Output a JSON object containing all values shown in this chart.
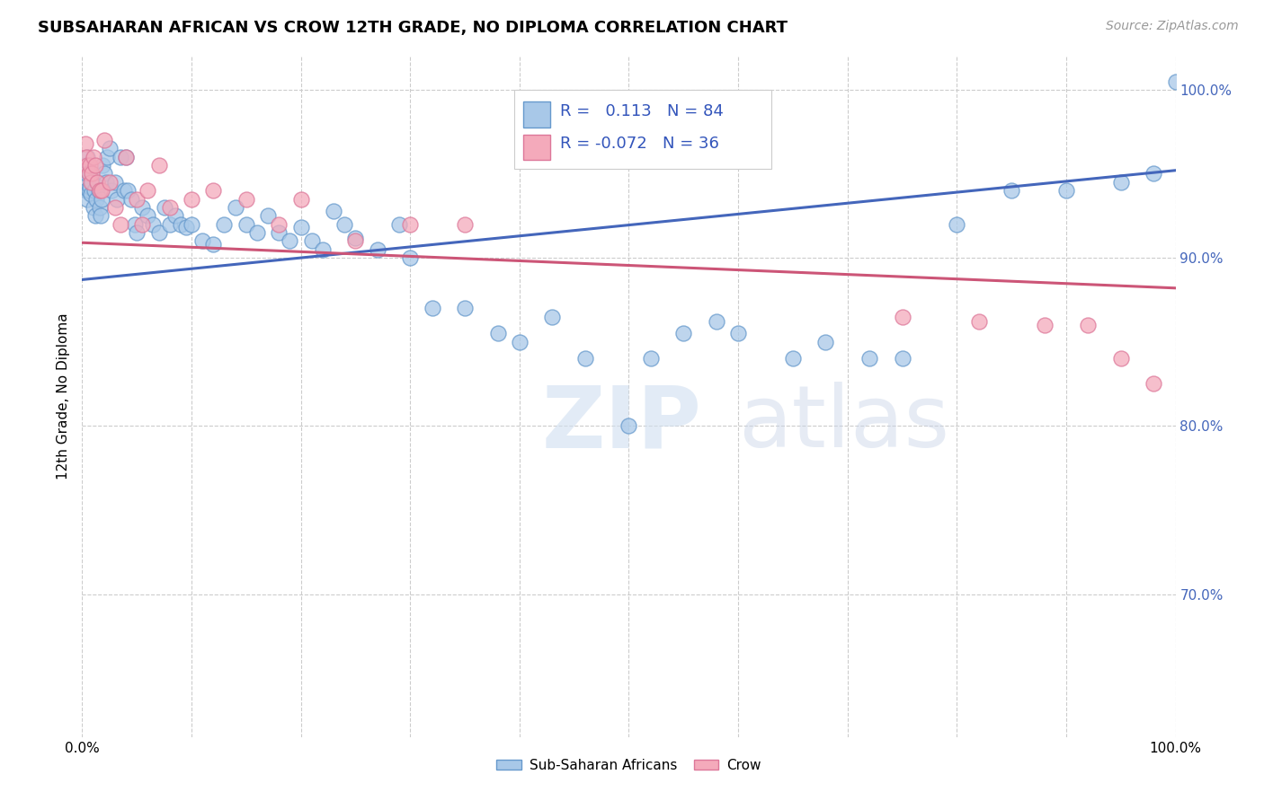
{
  "title": "SUBSAHARAN AFRICAN VS CROW 12TH GRADE, NO DIPLOMA CORRELATION CHART",
  "source": "Source: ZipAtlas.com",
  "ylabel": "12th Grade, No Diploma",
  "watermark_zip": "ZIP",
  "watermark_atlas": "atlas",
  "legend_blue_r": "0.113",
  "legend_blue_n": "84",
  "legend_pink_r": "-0.072",
  "legend_pink_n": "36",
  "xlim": [
    0,
    1.0
  ],
  "ylim": [
    0.615,
    1.02
  ],
  "xticks": [
    0.0,
    0.1,
    0.2,
    0.3,
    0.4,
    0.5,
    0.6,
    0.7,
    0.8,
    0.9,
    1.0
  ],
  "ytick_positions": [
    0.7,
    0.8,
    0.9,
    1.0
  ],
  "ytick_labels": [
    "70.0%",
    "80.0%",
    "90.0%",
    "100.0%"
  ],
  "grid_color": "#cccccc",
  "blue_color": "#A8C8E8",
  "blue_edge": "#6699CC",
  "pink_color": "#F4AABB",
  "pink_edge": "#DD7799",
  "line_blue": "#4466BB",
  "line_pink": "#CC5577",
  "blue_line_x": [
    0.0,
    1.0
  ],
  "blue_line_y": [
    0.887,
    0.952
  ],
  "pink_line_x": [
    0.0,
    1.0
  ],
  "pink_line_y": [
    0.909,
    0.882
  ],
  "blue_scatter_x": [
    0.002,
    0.003,
    0.004,
    0.004,
    0.005,
    0.005,
    0.006,
    0.006,
    0.007,
    0.008,
    0.009,
    0.01,
    0.011,
    0.012,
    0.013,
    0.014,
    0.015,
    0.016,
    0.017,
    0.018,
    0.019,
    0.02,
    0.022,
    0.023,
    0.025,
    0.027,
    0.03,
    0.032,
    0.035,
    0.038,
    0.04,
    0.042,
    0.045,
    0.048,
    0.05,
    0.055,
    0.06,
    0.065,
    0.07,
    0.075,
    0.08,
    0.085,
    0.09,
    0.095,
    0.1,
    0.11,
    0.12,
    0.13,
    0.14,
    0.15,
    0.16,
    0.17,
    0.18,
    0.19,
    0.2,
    0.21,
    0.22,
    0.23,
    0.24,
    0.25,
    0.27,
    0.29,
    0.3,
    0.32,
    0.35,
    0.38,
    0.4,
    0.43,
    0.46,
    0.5,
    0.52,
    0.55,
    0.58,
    0.6,
    0.65,
    0.68,
    0.72,
    0.75,
    0.8,
    0.85,
    0.9,
    0.95,
    0.98,
    1.0
  ],
  "blue_scatter_y": [
    0.955,
    0.945,
    0.94,
    0.95,
    0.96,
    0.935,
    0.95,
    0.94,
    0.942,
    0.938,
    0.945,
    0.93,
    0.94,
    0.925,
    0.935,
    0.945,
    0.94,
    0.93,
    0.925,
    0.935,
    0.955,
    0.95,
    0.945,
    0.96,
    0.965,
    0.94,
    0.945,
    0.935,
    0.96,
    0.94,
    0.96,
    0.94,
    0.935,
    0.92,
    0.915,
    0.93,
    0.925,
    0.92,
    0.915,
    0.93,
    0.92,
    0.925,
    0.92,
    0.918,
    0.92,
    0.91,
    0.908,
    0.92,
    0.93,
    0.92,
    0.915,
    0.925,
    0.915,
    0.91,
    0.918,
    0.91,
    0.905,
    0.928,
    0.92,
    0.912,
    0.905,
    0.92,
    0.9,
    0.87,
    0.87,
    0.855,
    0.85,
    0.865,
    0.84,
    0.8,
    0.84,
    0.855,
    0.862,
    0.855,
    0.84,
    0.85,
    0.84,
    0.84,
    0.92,
    0.94,
    0.94,
    0.945,
    0.95,
    1.005
  ],
  "pink_scatter_x": [
    0.003,
    0.004,
    0.005,
    0.006,
    0.007,
    0.008,
    0.009,
    0.01,
    0.012,
    0.014,
    0.016,
    0.018,
    0.02,
    0.025,
    0.03,
    0.035,
    0.04,
    0.05,
    0.055,
    0.06,
    0.07,
    0.08,
    0.1,
    0.12,
    0.15,
    0.18,
    0.2,
    0.25,
    0.3,
    0.35,
    0.75,
    0.82,
    0.88,
    0.92,
    0.95,
    0.98
  ],
  "pink_scatter_y": [
    0.968,
    0.96,
    0.955,
    0.95,
    0.955,
    0.945,
    0.95,
    0.96,
    0.955,
    0.945,
    0.94,
    0.94,
    0.97,
    0.945,
    0.93,
    0.92,
    0.96,
    0.935,
    0.92,
    0.94,
    0.955,
    0.93,
    0.935,
    0.94,
    0.935,
    0.92,
    0.935,
    0.91,
    0.92,
    0.92,
    0.865,
    0.862,
    0.86,
    0.86,
    0.84,
    0.825
  ],
  "title_fontsize": 13,
  "label_fontsize": 11,
  "tick_fontsize": 11,
  "source_fontsize": 10,
  "ytick_color": "#4466BB"
}
